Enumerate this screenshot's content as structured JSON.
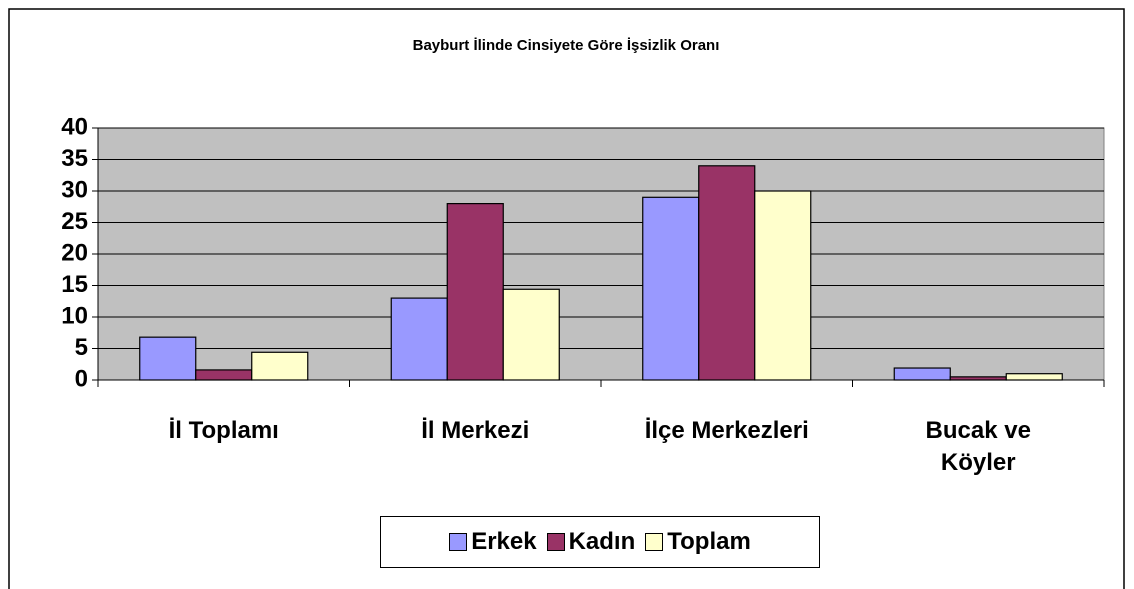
{
  "chart_data": {
    "type": "bar",
    "title": "Bayburt İlinde Cinsiyete Göre İşsizlik Oranı",
    "categories": [
      "İl Toplamı",
      "İl Merkezi",
      "İlçe Merkezleri",
      "Bucak ve Köyler"
    ],
    "series": [
      {
        "name": "Erkek",
        "color": "#9999ff",
        "values": [
          6.8,
          13,
          29,
          1.9
        ]
      },
      {
        "name": "Kadın",
        "color": "#993366",
        "values": [
          1.6,
          28,
          34,
          0.5
        ]
      },
      {
        "name": "Toplam",
        "color": "#ffffcc",
        "values": [
          4.4,
          14.4,
          30,
          1.0
        ]
      }
    ],
    "ylim": [
      0,
      40
    ],
    "yticks": [
      0,
      5,
      10,
      15,
      20,
      25,
      30,
      35,
      40
    ],
    "grid": true,
    "legend": "bottom"
  }
}
